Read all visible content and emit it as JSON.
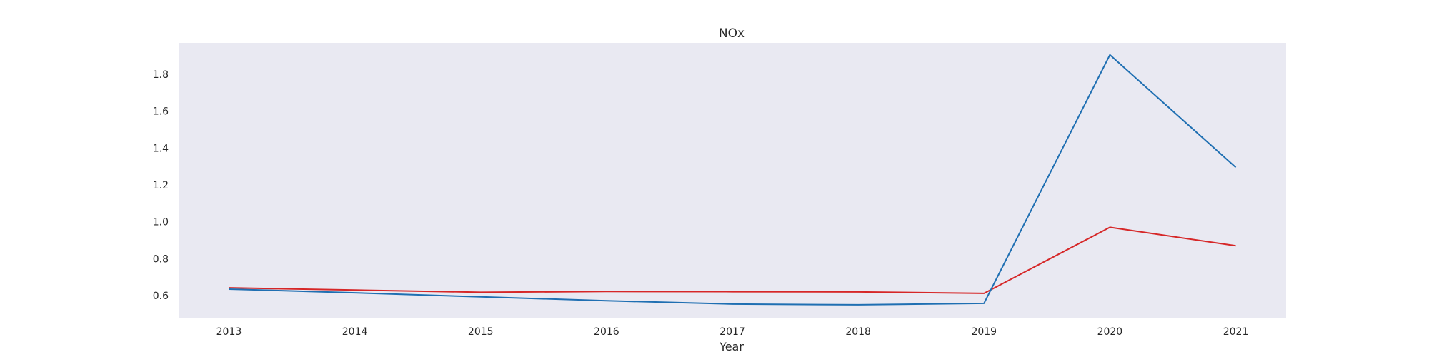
{
  "chart_data": {
    "type": "line",
    "title": "NOx",
    "xlabel": "Year",
    "ylabel": "",
    "x": [
      2013,
      2014,
      2015,
      2016,
      2017,
      2018,
      2019,
      2020,
      2021
    ],
    "xlim": [
      2012.6,
      2021.4
    ],
    "ylim": [
      0.48,
      1.97
    ],
    "yticks": [
      0.6,
      0.8,
      1.0,
      1.2,
      1.4,
      1.6,
      1.8
    ],
    "ytick_labels": [
      "0.6",
      "0.8",
      "1.0",
      "1.2",
      "1.4",
      "1.6",
      "1.8"
    ],
    "grid": false,
    "background": "#e9e9f2",
    "series": [
      {
        "color": "#1f6fb2",
        "values": [
          0.635,
          0.615,
          0.593,
          0.572,
          0.554,
          0.55,
          0.558,
          1.905,
          1.295
        ]
      },
      {
        "color": "#d62728",
        "values": [
          0.642,
          0.63,
          0.618,
          0.622,
          0.621,
          0.62,
          0.612,
          0.97,
          0.87
        ]
      }
    ]
  }
}
